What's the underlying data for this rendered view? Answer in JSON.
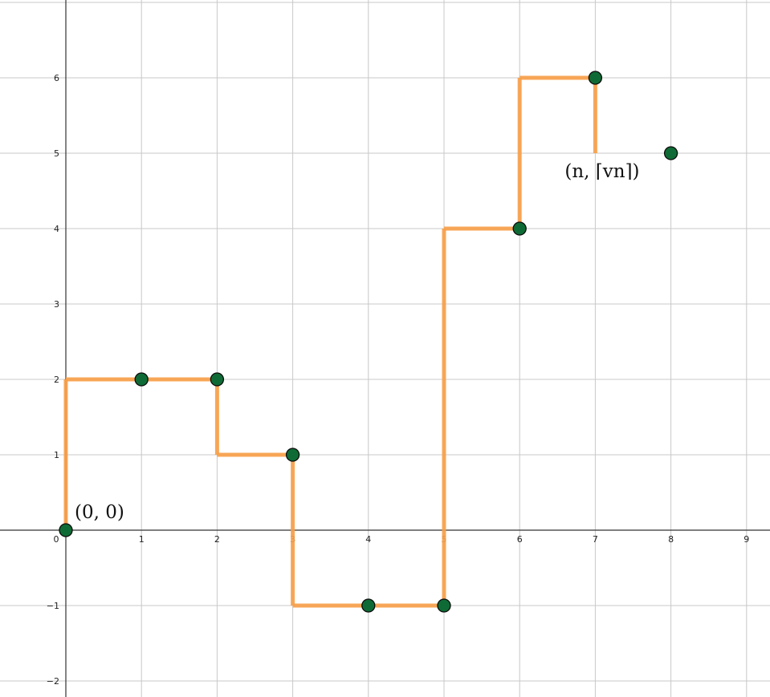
{
  "chart_data": {
    "type": "line",
    "title": "",
    "xlabel": "",
    "ylabel": "",
    "xlim": [
      -0.8,
      9.3
    ],
    "ylim": [
      -2.2,
      7.0
    ],
    "grid": true,
    "x_ticks": [
      {
        "value": 0,
        "label": "0"
      },
      {
        "value": 1,
        "label": "1"
      },
      {
        "value": 2,
        "label": "2"
      },
      {
        "value": 3,
        "label": "3"
      },
      {
        "value": 4,
        "label": "4"
      },
      {
        "value": 5,
        "label": "5"
      },
      {
        "value": 6,
        "label": "6"
      },
      {
        "value": 7,
        "label": "7"
      },
      {
        "value": 8,
        "label": "8"
      },
      {
        "value": 9,
        "label": "9"
      }
    ],
    "y_ticks": [
      {
        "value": -2,
        "label": "−2"
      },
      {
        "value": -1,
        "label": "−1"
      },
      {
        "value": 1,
        "label": "1"
      },
      {
        "value": 2,
        "label": "2"
      },
      {
        "value": 3,
        "label": "3"
      },
      {
        "value": 4,
        "label": "4"
      },
      {
        "value": 5,
        "label": "5"
      },
      {
        "value": 6,
        "label": "6"
      }
    ],
    "step_path": {
      "color": "#f7a04a",
      "points": [
        [
          0,
          0
        ],
        [
          0,
          2
        ],
        [
          1,
          2
        ],
        [
          2,
          2
        ],
        [
          2,
          1
        ],
        [
          3,
          1
        ],
        [
          3,
          -1
        ],
        [
          4,
          -1
        ],
        [
          5,
          -1
        ],
        [
          5,
          4
        ],
        [
          6,
          4
        ],
        [
          6,
          6
        ],
        [
          7,
          6
        ],
        [
          7,
          5
        ]
      ]
    },
    "points": {
      "color": "#0f6b35",
      "values": [
        [
          0,
          0
        ],
        [
          1,
          2
        ],
        [
          2,
          2
        ],
        [
          3,
          1
        ],
        [
          4,
          -1
        ],
        [
          5,
          -1
        ],
        [
          6,
          4
        ],
        [
          7,
          6
        ],
        [
          8,
          5
        ]
      ]
    },
    "annotations": [
      {
        "x": 0,
        "y": 0,
        "text": "(0, 0)"
      },
      {
        "x": 7,
        "y": 5,
        "text": "(n, ⌈vn⌉)"
      }
    ]
  }
}
